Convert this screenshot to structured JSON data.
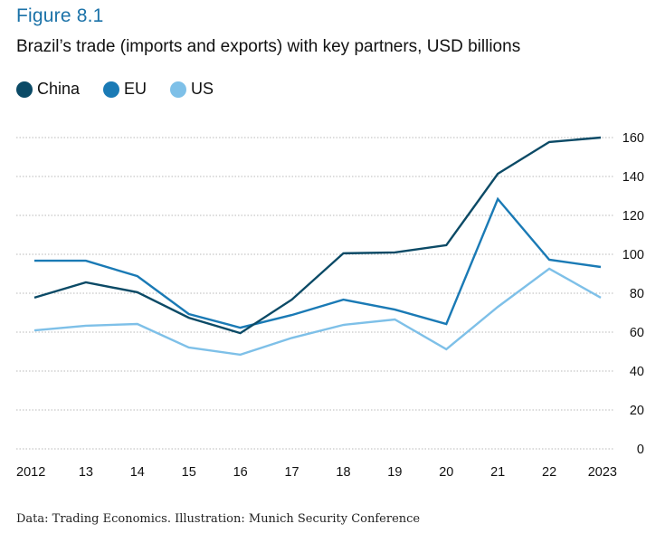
{
  "figure_label": "Figure 8.1",
  "footer": "Data: Trading Economics. Illustration: Munich Security Conference",
  "chart_data": {
    "type": "line",
    "title": "Brazil’s trade (imports and exports) with key partners, USD billions",
    "xlabel": "",
    "ylabel": "",
    "x": [
      2012,
      2013,
      2014,
      2015,
      2016,
      2017,
      2018,
      2019,
      2020,
      2021,
      2022,
      2023
    ],
    "x_tick_labels": [
      "2012",
      "13",
      "14",
      "15",
      "16",
      "17",
      "18",
      "19",
      "20",
      "21",
      "22",
      "2023"
    ],
    "y_ticks": [
      0,
      20,
      40,
      60,
      80,
      100,
      120,
      140,
      160
    ],
    "ylim": [
      0,
      160
    ],
    "y_axis_side": "right",
    "grid": "horizontal dotted",
    "legend_position": "top-left",
    "series": [
      {
        "name": "China",
        "color": "#0b4a66",
        "values": [
          77.7,
          85.6,
          80.5,
          67.4,
          59.5,
          76.7,
          100.5,
          101.0,
          104.7,
          141.4,
          157.7,
          160.0
        ]
      },
      {
        "name": "EU",
        "color": "#1a7ab5",
        "values": [
          96.7,
          96.7,
          88.8,
          69.3,
          62.3,
          68.8,
          76.7,
          71.6,
          64.2,
          128.4,
          97.2,
          93.5
        ]
      },
      {
        "name": "US",
        "color": "#7ec0e8",
        "values": [
          60.9,
          63.3,
          64.2,
          52.1,
          48.4,
          57.0,
          63.7,
          66.5,
          51.2,
          73.0,
          92.6,
          77.7
        ]
      }
    ]
  }
}
